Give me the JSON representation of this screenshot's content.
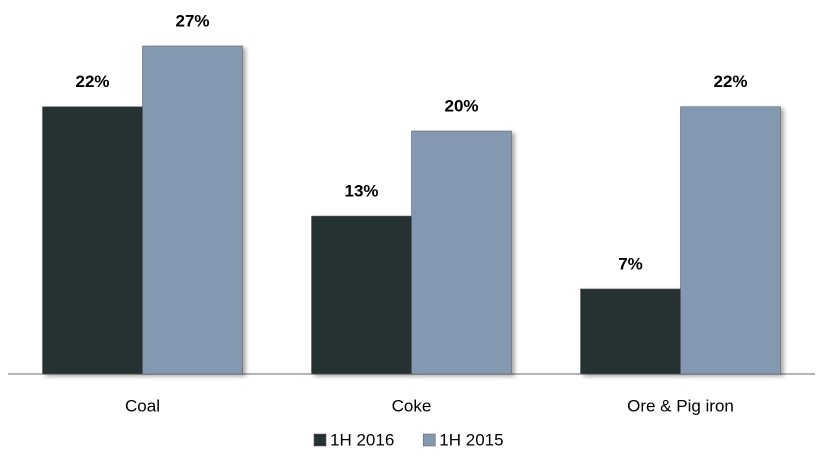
{
  "chart_data": {
    "type": "bar",
    "categories": [
      "Coal",
      "Coke",
      "Ore & Pig iron"
    ],
    "series": [
      {
        "name": "1H 2016",
        "color": "#263232",
        "values": [
          22,
          13,
          7
        ],
        "value_labels": [
          "22%",
          "13%",
          "7%"
        ]
      },
      {
        "name": "1H 2015",
        "color": "#8598b2",
        "values": [
          27,
          20,
          22
        ],
        "value_labels": [
          "27%",
          "20%",
          "22%"
        ]
      }
    ],
    "legend": "bottom"
  }
}
